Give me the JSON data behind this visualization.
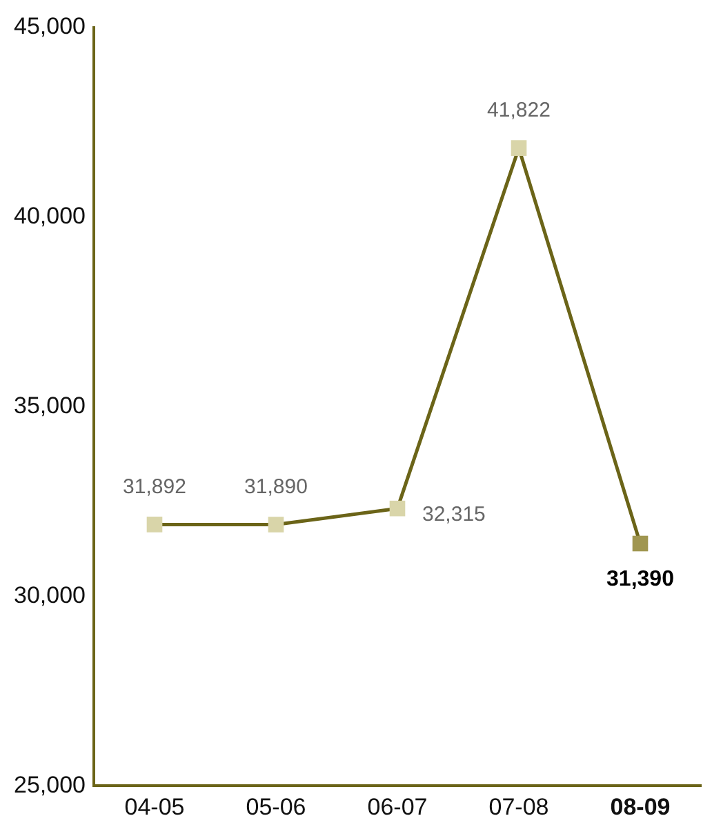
{
  "chart_data": {
    "type": "line",
    "categories": [
      "04-05",
      "05-06",
      "06-07",
      "07-08",
      "08-09"
    ],
    "series": [
      {
        "color": "#6b6418",
        "colors": [
          "#d9d5a9",
          "#d9d5a9",
          "#d9d5a9",
          "#d9d5a9",
          "#a09650"
        ],
        "values": [
          31892,
          31890,
          32315,
          41822,
          31390
        ],
        "value_labels": [
          "31,892",
          "31,890",
          "32,315",
          "41,822",
          "31,390"
        ]
      }
    ],
    "ylim": [
      25000,
      45000
    ],
    "yticks": [
      {
        "value": 25000,
        "label": "25,000"
      },
      {
        "value": 30000,
        "label": "30,000"
      },
      {
        "value": 35000,
        "label": "35,000"
      },
      {
        "value": 40000,
        "label": "40,000"
      },
      {
        "value": 45000,
        "label": "45,000"
      }
    ],
    "grid": false,
    "legend": false,
    "marker": "square",
    "line_style": "solid"
  }
}
